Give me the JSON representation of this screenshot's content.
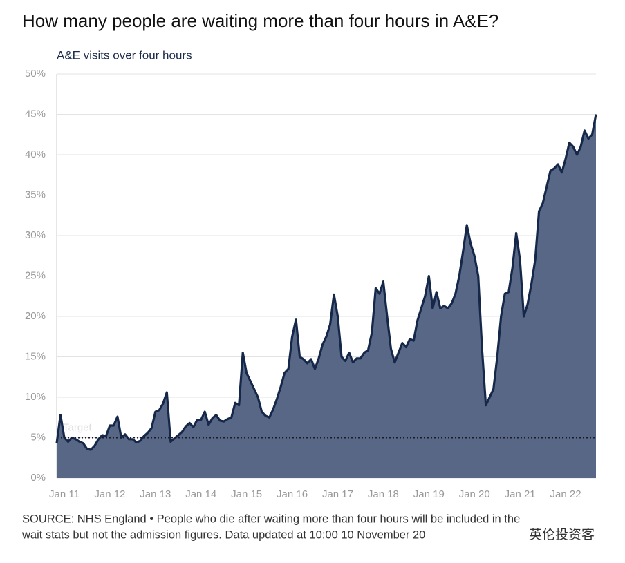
{
  "chart_data": {
    "type": "area",
    "title": "How many people are waiting more than four hours in A&E?",
    "subtitle": "A&E visits over four hours",
    "source": [
      "SOURCE: NHS England • People who die after waiting more than four hours will be included in the",
      "wait stats but not the admission figures. Data updated at 10:00 10 November 20"
    ],
    "watermark": "英伦投资客",
    "categories": [
      "Nov 10",
      "Dec 10",
      "Jan 11",
      "Feb 11",
      "Mar 11",
      "Apr 11",
      "May 11",
      "Jun 11",
      "Jul 11",
      "Aug 11",
      "Sep 11",
      "Oct 11",
      "Nov 11",
      "Dec 11",
      "Jan 12",
      "Feb 12",
      "Mar 12",
      "Apr 12",
      "May 12",
      "Jun 12",
      "Jul 12",
      "Aug 12",
      "Sep 12",
      "Oct 12",
      "Nov 12",
      "Dec 12",
      "Jan 13",
      "Feb 13",
      "Mar 13",
      "Apr 13",
      "May 13",
      "Jun 13",
      "Jul 13",
      "Aug 13",
      "Sep 13",
      "Oct 13",
      "Nov 13",
      "Dec 13",
      "Jan 14",
      "Feb 14",
      "Mar 14",
      "Apr 14",
      "May 14",
      "Jun 14",
      "Jul 14",
      "Aug 14",
      "Sep 14",
      "Oct 14",
      "Nov 14",
      "Dec 14",
      "Jan 15",
      "Feb 15",
      "Mar 15",
      "Apr 15",
      "May 15",
      "Jun 15",
      "Jul 15",
      "Aug 15",
      "Sep 15",
      "Oct 15",
      "Nov 15",
      "Dec 15",
      "Jan 16",
      "Feb 16",
      "Mar 16",
      "Apr 16",
      "May 16",
      "Jun 16",
      "Jul 16",
      "Aug 16",
      "Sep 16",
      "Oct 16",
      "Nov 16",
      "Dec 16",
      "Jan 17",
      "Feb 17",
      "Mar 17",
      "Apr 17",
      "May 17",
      "Jun 17",
      "Jul 17",
      "Aug 17",
      "Sep 17",
      "Oct 17",
      "Nov 17",
      "Dec 17",
      "Jan 18",
      "Feb 18",
      "Mar 18",
      "Apr 18",
      "May 18",
      "Jun 18",
      "Jul 18",
      "Aug 18",
      "Sep 18",
      "Oct 18",
      "Nov 18",
      "Dec 18",
      "Jan 19",
      "Feb 19",
      "Mar 19",
      "Apr 19",
      "May 19",
      "Jun 19",
      "Jul 19",
      "Aug 19",
      "Sep 19",
      "Oct 19",
      "Nov 19",
      "Dec 19",
      "Jan 20",
      "Feb 20",
      "Mar 20",
      "Apr 20",
      "May 20",
      "Jun 20",
      "Jul 20",
      "Aug 20",
      "Sep 20",
      "Oct 20",
      "Nov 20",
      "Dec 20",
      "Jan 21",
      "Feb 21",
      "Mar 21",
      "Apr 21",
      "May 21",
      "Jun 21",
      "Jul 21",
      "Aug 21",
      "Sep 21",
      "Oct 21",
      "Nov 21",
      "Dec 21",
      "Jan 22",
      "Feb 22",
      "Mar 22",
      "Apr 22",
      "May 22",
      "Jun 22",
      "Jul 22",
      "Aug 22",
      "Sep 22"
    ],
    "series": [
      {
        "name": "A&E visits over four hours",
        "color": "#586785",
        "line_color": "#15284a",
        "values": [
          4.3,
          7.8,
          5.0,
          4.5,
          5.0,
          4.8,
          4.5,
          4.3,
          3.6,
          3.5,
          4.0,
          4.8,
          5.3,
          5.2,
          6.5,
          6.5,
          7.6,
          5.0,
          5.4,
          4.8,
          4.8,
          4.4,
          4.6,
          5.2,
          5.6,
          6.2,
          8.2,
          8.4,
          9.2,
          10.6,
          4.5,
          4.9,
          5.3,
          5.7,
          6.4,
          6.8,
          6.3,
          7.2,
          7.2,
          8.2,
          6.6,
          7.4,
          7.8,
          7.1,
          7.0,
          7.3,
          7.5,
          9.3,
          9.0,
          15.5,
          13,
          12,
          11,
          10,
          8.2,
          7.7,
          7.5,
          8.5,
          9.8,
          11.3,
          13,
          13.5,
          17.5,
          19.6,
          15,
          14.7,
          14.2,
          14.7,
          13.5,
          14.8,
          16.5,
          17.5,
          19,
          22.7,
          20,
          15,
          14.5,
          15.5,
          14.3,
          14.8,
          14.8,
          15.5,
          15.8,
          18,
          23.5,
          22.8,
          24.3,
          20,
          16,
          14.3,
          15.5,
          16.7,
          16.2,
          17.2,
          17,
          19.5,
          21,
          22.5,
          25,
          21,
          23,
          21,
          21.3,
          21,
          21.6,
          22.8,
          25,
          28,
          31.3,
          29,
          27.5,
          25,
          16,
          9,
          10,
          11,
          15,
          20,
          22.8,
          23,
          26,
          30.3,
          27,
          20,
          21.5,
          24,
          27,
          33,
          34,
          36,
          38,
          38.3,
          38.8,
          37.8,
          39.5,
          41.5,
          41,
          40,
          41,
          43,
          42,
          42.5,
          45
        ]
      }
    ],
    "xticks": [
      "Jan 11",
      "Jan 12",
      "Jan 13",
      "Jan 14",
      "Jan 15",
      "Jan 16",
      "Jan 17",
      "Jan 18",
      "Jan 19",
      "Jan 20",
      "Jan 21",
      "Jan 22"
    ],
    "ylim": [
      0,
      50
    ],
    "yticks": [
      {
        "value": 0,
        "label": "0%"
      },
      {
        "value": 5,
        "label": "5%"
      },
      {
        "value": 10,
        "label": "10%"
      },
      {
        "value": 15,
        "label": "15%"
      },
      {
        "value": 20,
        "label": "20%"
      },
      {
        "value": 25,
        "label": "25%"
      },
      {
        "value": 30,
        "label": "30%"
      },
      {
        "value": 35,
        "label": "35%"
      },
      {
        "value": 40,
        "label": "40%"
      },
      {
        "value": 45,
        "label": "45%"
      },
      {
        "value": 50,
        "label": "50%"
      }
    ],
    "grid": true,
    "target": {
      "label": "Target",
      "value": 5
    }
  }
}
